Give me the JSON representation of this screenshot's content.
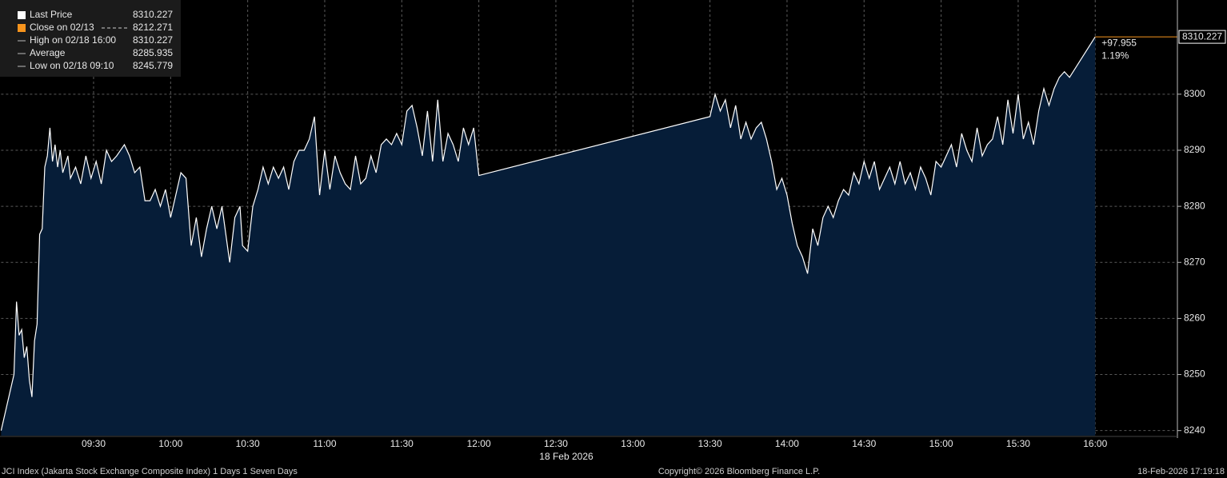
{
  "chart_data": {
    "type": "area",
    "color": "#ffffff",
    "fill": "#061d38",
    "grid": true,
    "x_label": "18 Feb 2026",
    "xlim": [
      "08:54",
      "16:32"
    ],
    "xticks": [
      "09:30",
      "10:00",
      "10:30",
      "11:00",
      "11:30",
      "12:00",
      "12:30",
      "13:00",
      "13:30",
      "14:00",
      "14:30",
      "15:00",
      "15:30",
      "16:00"
    ],
    "ylim": [
      8239.1,
      8316.8
    ],
    "yticks": [
      8240,
      8250,
      8260,
      8270,
      8280,
      8290,
      8300
    ],
    "legend": [
      {
        "label": "Last Price",
        "value": 8310.227,
        "color": "#ffffff"
      },
      {
        "label": "Close on 02/13",
        "value": 8212.271,
        "color": "#f7941d"
      },
      {
        "label": "High on 02/18 16:00",
        "value": 8310.227,
        "color": "#bbbbbb"
      },
      {
        "label": "Average",
        "value": 8285.935,
        "color": "#bbbbbb"
      },
      {
        "label": "Low on 02/18 09:10",
        "value": 8245.779,
        "color": "#bbbbbb"
      }
    ],
    "change": {
      "value": 97.955,
      "label": "+97.955"
    },
    "change_pct": {
      "value": 1.19,
      "label": "1.19%"
    },
    "footer": {
      "left": "JCI Index (Jakarta Stock Exchange Composite Index) 1 Days 1 Seven Days",
      "center": "Copyright© 2026 Bloomberg Finance L.P.",
      "right": "18-Feb-2026 17:19:18"
    },
    "series": [
      {
        "name": "Last Price",
        "x": [
          "08:54",
          "08:59",
          "09:00",
          "09:01",
          "09:02",
          "09:03",
          "09:04",
          "09:05",
          "09:06",
          "09:07",
          "09:08",
          "09:09",
          "09:10",
          "09:11",
          "09:12",
          "09:13",
          "09:14",
          "09:15",
          "09:16",
          "09:17",
          "09:18",
          "09:20",
          "09:21",
          "09:23",
          "09:25",
          "09:27",
          "09:29",
          "09:31",
          "09:33",
          "09:35",
          "09:37",
          "09:39",
          "09:42",
          "09:44",
          "09:46",
          "09:48",
          "09:50",
          "09:52",
          "09:54",
          "09:56",
          "09:58",
          "10:00",
          "10:02",
          "10:04",
          "10:06",
          "10:08",
          "10:10",
          "10:12",
          "10:14",
          "10:16",
          "10:18",
          "10:20",
          "10:23",
          "10:25",
          "10:27",
          "10:28",
          "10:30",
          "10:32",
          "10:34",
          "10:36",
          "10:38",
          "10:40",
          "10:42",
          "10:44",
          "10:46",
          "10:48",
          "10:50",
          "10:52",
          "10:54",
          "10:56",
          "10:58",
          "11:00",
          "11:02",
          "11:04",
          "11:06",
          "11:08",
          "11:10",
          "11:12",
          "11:14",
          "11:16",
          "11:18",
          "11:20",
          "11:22",
          "11:24",
          "11:26",
          "11:28",
          "11:30",
          "11:32",
          "11:34",
          "11:36",
          "11:38",
          "11:40",
          "11:42",
          "11:44",
          "11:46",
          "11:48",
          "11:50",
          "11:52",
          "11:54",
          "11:56",
          "11:58",
          "12:00",
          "13:30",
          "13:32",
          "13:34",
          "13:36",
          "13:38",
          "13:40",
          "13:42",
          "13:44",
          "13:46",
          "13:48",
          "13:50",
          "13:52",
          "13:54",
          "13:56",
          "13:58",
          "14:00",
          "14:02",
          "14:04",
          "14:06",
          "14:08",
          "14:10",
          "14:12",
          "14:14",
          "14:16",
          "14:18",
          "14:20",
          "14:22",
          "14:24",
          "14:26",
          "14:28",
          "14:30",
          "14:32",
          "14:34",
          "14:36",
          "14:38",
          "14:40",
          "14:42",
          "14:44",
          "14:46",
          "14:48",
          "14:50",
          "14:52",
          "14:54",
          "14:56",
          "14:58",
          "15:00",
          "15:02",
          "15:04",
          "15:06",
          "15:08",
          "15:10",
          "15:12",
          "15:14",
          "15:16",
          "15:18",
          "15:20",
          "15:22",
          "15:24",
          "15:26",
          "15:28",
          "15:30",
          "15:32",
          "15:34",
          "15:36",
          "15:38",
          "15:40",
          "15:42",
          "15:44",
          "15:46",
          "15:48",
          "15:50",
          "16:00"
        ],
        "values": [
          8240,
          8250,
          8263,
          8257,
          8258,
          8253,
          8255,
          8249,
          8246,
          8256,
          8259,
          8275,
          8276,
          8287,
          8289,
          8294,
          8288,
          8291,
          8287,
          8290,
          8286,
          8289,
          8285,
          8287,
          8284,
          8289,
          8285,
          8288,
          8284,
          8290,
          8288,
          8289,
          8291,
          8289,
          8286,
          8287,
          8281,
          8281,
          8283,
          8280,
          8283,
          8278,
          8282,
          8286,
          8285,
          8273,
          8278,
          8271,
          8276,
          8280,
          8276,
          8280,
          8270,
          8278,
          8280,
          8273,
          8272,
          8280,
          8283,
          8287,
          8284,
          8287,
          8285,
          8287,
          8283,
          8288,
          8290,
          8290,
          8292,
          8296,
          8282,
          8290,
          8283,
          8289,
          8286,
          8284,
          8283,
          8289,
          8284,
          8285,
          8289,
          8286,
          8291,
          8292,
          8291,
          8293,
          8291,
          8297,
          8298,
          8294,
          8289,
          8297,
          8288,
          8299,
          8288,
          8293,
          8291,
          8288,
          8294,
          8291,
          8294,
          8285.5,
          8296,
          8300,
          8297,
          8299,
          8294,
          8298,
          8292,
          8295,
          8292,
          8294,
          8295,
          8292,
          8288,
          8283,
          8285,
          8282,
          8277,
          8273,
          8271,
          8268,
          8276,
          8273,
          8278,
          8280,
          8278,
          8281,
          8283,
          8282,
          8286,
          8284,
          8288,
          8285,
          8288,
          8283,
          8285,
          8287,
          8284,
          8288,
          8284,
          8286,
          8283,
          8287,
          8285,
          8282,
          8288,
          8287,
          8289,
          8291,
          8287,
          8293,
          8290,
          8288,
          8294,
          8289,
          8291,
          8292,
          8296,
          8291,
          8299,
          8293,
          8300,
          8292,
          8295,
          8291,
          8297,
          8301,
          8298,
          8301,
          8303,
          8304,
          8303,
          8310.227
        ]
      }
    ]
  }
}
